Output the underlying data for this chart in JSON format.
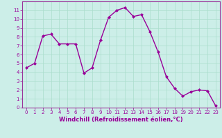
{
  "x": [
    0,
    1,
    2,
    3,
    4,
    5,
    6,
    7,
    8,
    9,
    10,
    11,
    12,
    13,
    14,
    15,
    16,
    17,
    18,
    19,
    20,
    21,
    22,
    23
  ],
  "y": [
    4.5,
    5.0,
    8.1,
    8.3,
    7.2,
    7.2,
    7.2,
    3.9,
    4.5,
    7.6,
    10.2,
    11.0,
    11.3,
    10.3,
    10.5,
    8.6,
    6.3,
    3.5,
    2.2,
    1.3,
    1.8,
    2.0,
    1.9,
    0.2
  ],
  "line_color": "#990099",
  "marker": "D",
  "marker_size": 2.0,
  "linewidth": 1.0,
  "bg_color": "#cceee8",
  "grid_color": "#aaddcc",
  "xlabel": "Windchill (Refroidissement éolien,°C)",
  "xlabel_color": "#990099",
  "tick_color": "#990099",
  "xlim": [
    -0.5,
    23.5
  ],
  "ylim": [
    0,
    12
  ],
  "yticks": [
    0,
    1,
    2,
    3,
    4,
    5,
    6,
    7,
    8,
    9,
    10,
    11
  ],
  "xticks": [
    0,
    1,
    2,
    3,
    4,
    5,
    6,
    7,
    8,
    9,
    10,
    11,
    12,
    13,
    14,
    15,
    16,
    17,
    18,
    19,
    20,
    21,
    22,
    23
  ],
  "xlabel_fontsize": 6.0,
  "tick_fontsize": 5.0,
  "spine_color": "#993399"
}
